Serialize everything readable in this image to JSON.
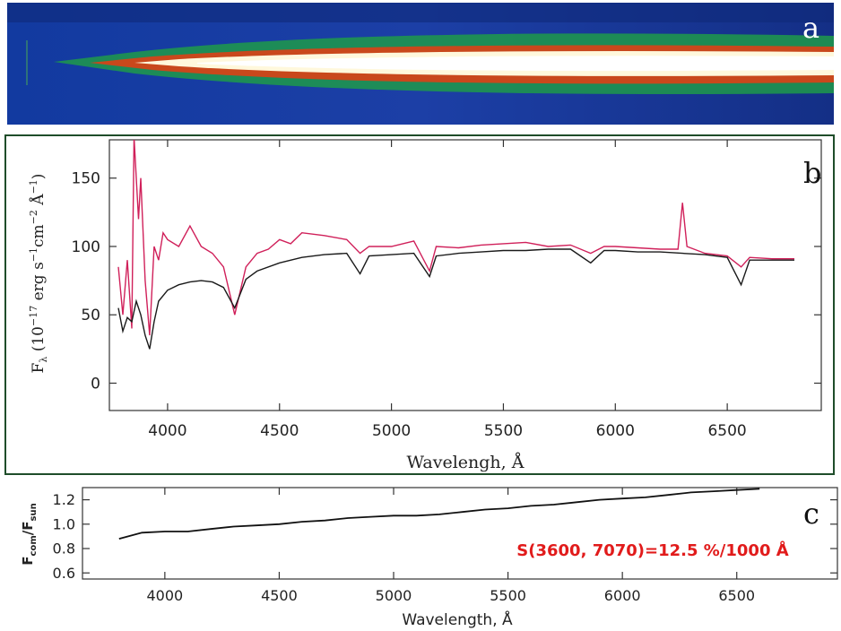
{
  "panels": {
    "a": {
      "label": "a"
    },
    "b": {
      "label": "b"
    },
    "c": {
      "label": "c"
    }
  },
  "colors": {
    "spectrum_observed": "#d0205a",
    "spectrum_model": "#1a1a1a",
    "panel_border": "#1f4d2a",
    "annotation": "#e11b1b",
    "image_background": "#1c2f8c",
    "image_core": "#ffffff"
  },
  "chart_data": [
    {
      "type": "image",
      "panel": "a",
      "description_label": "a"
    },
    {
      "type": "line",
      "panel": "b",
      "xlabel": "Wavelengh, Å",
      "ylabel": "F_λ (10^-17 erg s^-1 cm^-2 Å^-1)",
      "ylabel_parts": {
        "main": "F",
        "sub": "λ",
        "unit_open": "(10",
        "exp1": "−17",
        "unit_mid": " erg s",
        "exp2": "−1",
        "unit_cm": "cm",
        "exp3": "−2",
        "unit_a": " Å",
        "exp4": "−1",
        "unit_close": ")"
      },
      "xlim": [
        3740,
        6920
      ],
      "ylim": [
        -20,
        178
      ],
      "x_ticks": [
        4000,
        4500,
        5000,
        5500,
        6000,
        6500
      ],
      "y_ticks": [
        0,
        50,
        100,
        150
      ],
      "series": [
        {
          "role": "observed",
          "x": [
            3780,
            3800,
            3820,
            3840,
            3850,
            3860,
            3870,
            3880,
            3900,
            3920,
            3940,
            3960,
            3980,
            4000,
            4050,
            4100,
            4150,
            4200,
            4250,
            4300,
            4350,
            4400,
            4450,
            4500,
            4550,
            4600,
            4700,
            4800,
            4860,
            4900,
            5000,
            5100,
            5170,
            5200,
            5300,
            5400,
            5500,
            5600,
            5700,
            5800,
            5890,
            5950,
            6000,
            6100,
            6200,
            6280,
            6300,
            6320,
            6400,
            6500,
            6562,
            6600,
            6700,
            6800
          ],
          "y": [
            85,
            50,
            90,
            40,
            180,
            150,
            120,
            150,
            75,
            35,
            100,
            90,
            110,
            105,
            100,
            115,
            100,
            95,
            85,
            50,
            85,
            95,
            98,
            105,
            102,
            110,
            108,
            105,
            95,
            100,
            100,
            104,
            82,
            100,
            99,
            101,
            102,
            103,
            100,
            101,
            95,
            100,
            100,
            99,
            98,
            98,
            132,
            100,
            95,
            93,
            85,
            92,
            91,
            91
          ]
        },
        {
          "role": "model",
          "x": [
            3780,
            3800,
            3820,
            3840,
            3860,
            3880,
            3900,
            3920,
            3940,
            3960,
            4000,
            4050,
            4100,
            4150,
            4200,
            4250,
            4300,
            4350,
            4400,
            4500,
            4600,
            4700,
            4800,
            4860,
            4900,
            5000,
            5100,
            5170,
            5200,
            5300,
            5400,
            5500,
            5600,
            5700,
            5800,
            5890,
            5950,
            6000,
            6100,
            6200,
            6300,
            6400,
            6500,
            6562,
            6600,
            6700,
            6800
          ],
          "y": [
            55,
            38,
            48,
            45,
            60,
            50,
            35,
            25,
            45,
            60,
            68,
            72,
            74,
            75,
            74,
            70,
            55,
            76,
            82,
            88,
            92,
            94,
            95,
            80,
            93,
            94,
            95,
            78,
            93,
            95,
            96,
            97,
            97,
            98,
            98,
            88,
            97,
            97,
            96,
            96,
            95,
            94,
            92,
            72,
            90,
            90,
            90
          ]
        }
      ]
    },
    {
      "type": "line",
      "panel": "c",
      "xlabel": "Wavelength, Å",
      "ylabel": "F_com/F_sun",
      "ylabel_parts": {
        "top": "F",
        "top_sub": "com",
        "bottom": "F",
        "bottom_sub": "sun",
        "slash": "/"
      },
      "xlim": [
        3640,
        6940
      ],
      "ylim": [
        0.55,
        1.3
      ],
      "x_ticks": [
        4000,
        4500,
        5000,
        5500,
        6000,
        6500
      ],
      "y_ticks": [
        0.6,
        0.8,
        1.0,
        1.2
      ],
      "y_tick_labels": [
        "0.6",
        "0.8",
        "1.0",
        "1.2"
      ],
      "annotation": "S(3600, 7070)=12.5 %/1000 Å",
      "series": [
        {
          "role": "ratio",
          "x": [
            3800,
            3900,
            4000,
            4100,
            4200,
            4300,
            4400,
            4500,
            4600,
            4700,
            4800,
            4900,
            5000,
            5100,
            5200,
            5300,
            5400,
            5500,
            5600,
            5700,
            5800,
            5900,
            6000,
            6100,
            6200,
            6300,
            6400,
            6500,
            6600
          ],
          "y": [
            0.88,
            0.93,
            0.94,
            0.94,
            0.96,
            0.98,
            0.99,
            1.0,
            1.02,
            1.03,
            1.05,
            1.06,
            1.07,
            1.07,
            1.08,
            1.1,
            1.12,
            1.13,
            1.15,
            1.16,
            1.18,
            1.2,
            1.21,
            1.22,
            1.24,
            1.26,
            1.27,
            1.28,
            1.29
          ]
        }
      ]
    }
  ]
}
